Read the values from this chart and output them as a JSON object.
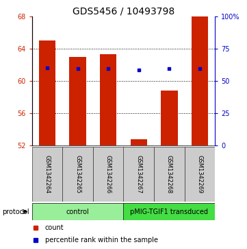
{
  "title": "GDS5456 / 10493798",
  "samples": [
    "GSM1342264",
    "GSM1342265",
    "GSM1342266",
    "GSM1342267",
    "GSM1342268",
    "GSM1342269"
  ],
  "bar_values": [
    65.0,
    63.0,
    63.3,
    52.8,
    58.8,
    68.0
  ],
  "bar_bottom": 52.0,
  "percentile_values": [
    60.0,
    59.7,
    59.7,
    58.7,
    59.5,
    59.7
  ],
  "ylim_left": [
    52,
    68
  ],
  "ylim_right": [
    0,
    100
  ],
  "yticks_left": [
    52,
    56,
    60,
    64,
    68
  ],
  "yticks_right": [
    0,
    25,
    50,
    75,
    100
  ],
  "ytick_labels_right": [
    "0",
    "25",
    "50",
    "75",
    "100%"
  ],
  "bar_color": "#cc2200",
  "percentile_color": "#0000cc",
  "protocol_groups": [
    {
      "label": "control",
      "indices": [
        0,
        1,
        2
      ],
      "color": "#99ee99"
    },
    {
      "label": "pMIG-TGIF1 transduced",
      "indices": [
        3,
        4,
        5
      ],
      "color": "#44dd44"
    }
  ],
  "protocol_label": "protocol",
  "legend_count_label": "count",
  "legend_pct_label": "percentile rank within the sample",
  "title_fontsize": 10,
  "tick_fontsize": 7,
  "label_fontsize": 7,
  "sample_fontsize": 6,
  "bar_width": 0.55,
  "gridline_ticks": [
    56,
    60,
    64
  ],
  "label_box_color": "#cccccc",
  "label_box_edge": "#333333"
}
